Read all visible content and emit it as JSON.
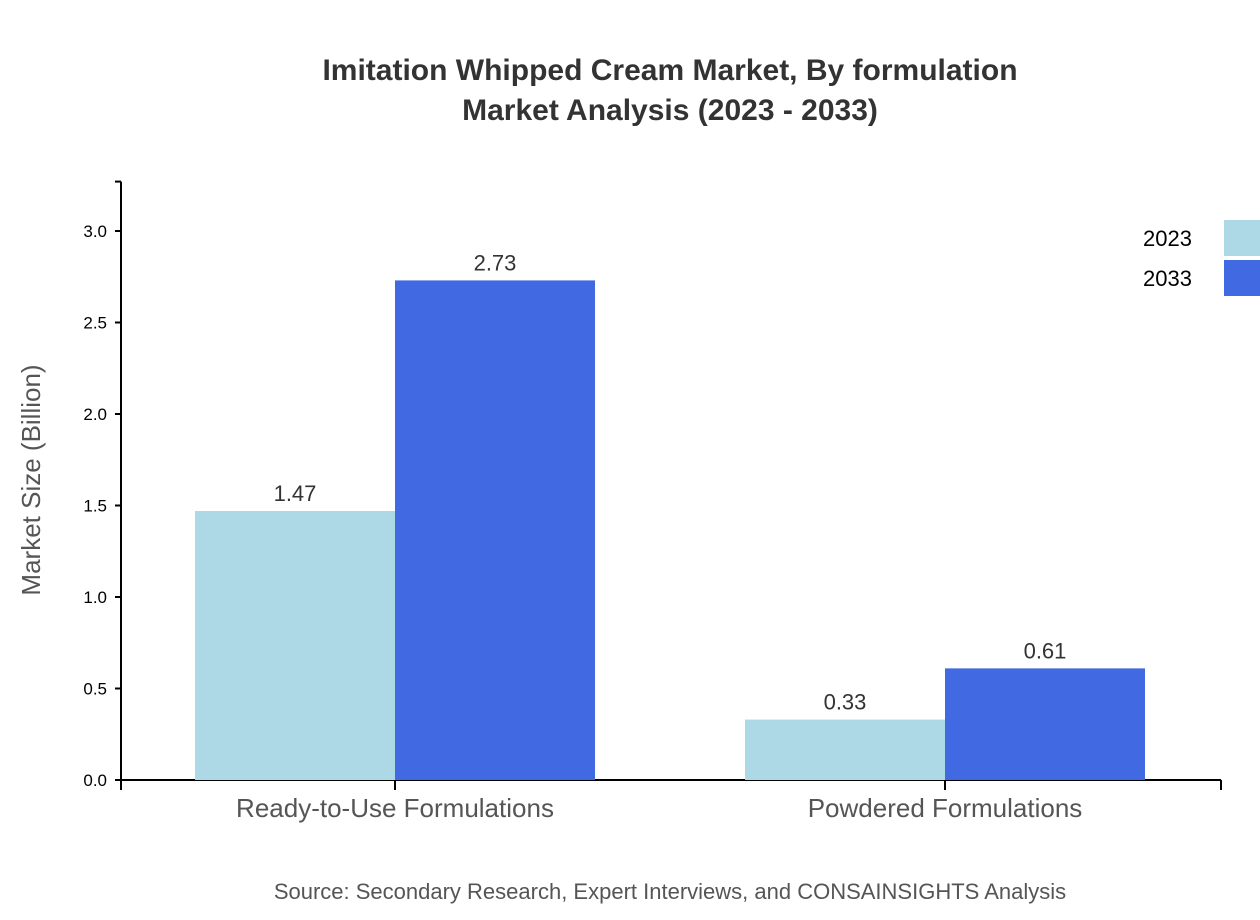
{
  "chart_data": {
    "type": "bar",
    "title": "Imitation Whipped Cream Market, By formulation",
    "subtitle": "Market Analysis (2023 - 2033)",
    "xlabel": "",
    "ylabel": "Market Size (Billion)",
    "categories": [
      "Ready-to-Use Formulations",
      "Powdered Formulations"
    ],
    "series": [
      {
        "name": "2023",
        "values": [
          1.47,
          0.33
        ],
        "color": "#add8e6"
      },
      {
        "name": "2033",
        "values": [
          2.73,
          0.61
        ],
        "color": "#4169e1"
      }
    ],
    "ylim": [
      0,
      3.27
    ],
    "yticks": [
      "0.0",
      "0.5",
      "1.0",
      "1.5",
      "2.0",
      "2.5",
      "3.0"
    ],
    "grid": false,
    "legend": "top-right",
    "source": "Source: Secondary Research, Expert Interviews, and CONSAINSIGHTS Analysis"
  }
}
